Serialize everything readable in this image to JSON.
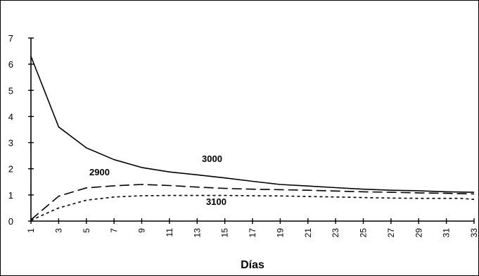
{
  "chart_data": {
    "type": "line",
    "title": "",
    "xlabel": "Días",
    "ylabel": "",
    "xlim": [
      1,
      33
    ],
    "ylim": [
      0,
      7
    ],
    "grid": false,
    "legend": "none",
    "y_ticks": [
      "0",
      "1",
      "2",
      "3",
      "4",
      "5",
      "6",
      "7"
    ],
    "x_ticks": [
      "1",
      "3",
      "5",
      "7",
      "9",
      "11",
      "13",
      "15",
      "17",
      "19",
      "21",
      "23",
      "25",
      "27",
      "29",
      "31",
      "33"
    ],
    "series_label_values": [
      "3000",
      "2900",
      "3100"
    ],
    "series": [
      {
        "name": "3000",
        "line_style": "solid",
        "x": [
          1,
          3,
          5,
          7,
          9,
          11,
          13,
          15,
          17,
          19,
          21,
          23,
          25,
          27,
          29,
          31,
          33
        ],
        "values": [
          6.3,
          3.6,
          2.8,
          2.35,
          2.05,
          1.88,
          1.77,
          1.65,
          1.52,
          1.4,
          1.34,
          1.28,
          1.22,
          1.18,
          1.16,
          1.12,
          1.1
        ]
      },
      {
        "name": "2900",
        "line_style": "dashed",
        "x": [
          1,
          3,
          5,
          7,
          9,
          11,
          13,
          15,
          17,
          19,
          21,
          23,
          25,
          27,
          29,
          31,
          33
        ],
        "values": [
          0.05,
          0.95,
          1.27,
          1.35,
          1.4,
          1.36,
          1.3,
          1.25,
          1.22,
          1.2,
          1.18,
          1.15,
          1.12,
          1.1,
          1.08,
          1.06,
          1.04
        ]
      },
      {
        "name": "3100",
        "line_style": "dotted",
        "x": [
          1,
          3,
          5,
          7,
          9,
          11,
          13,
          15,
          17,
          19,
          21,
          23,
          25,
          27,
          29,
          31,
          32,
          33
        ],
        "values": [
          0.03,
          0.5,
          0.8,
          0.92,
          0.97,
          0.98,
          0.98,
          0.98,
          0.97,
          0.96,
          0.94,
          0.92,
          0.9,
          0.88,
          0.87,
          0.87,
          0.87,
          0.83
        ]
      }
    ]
  }
}
